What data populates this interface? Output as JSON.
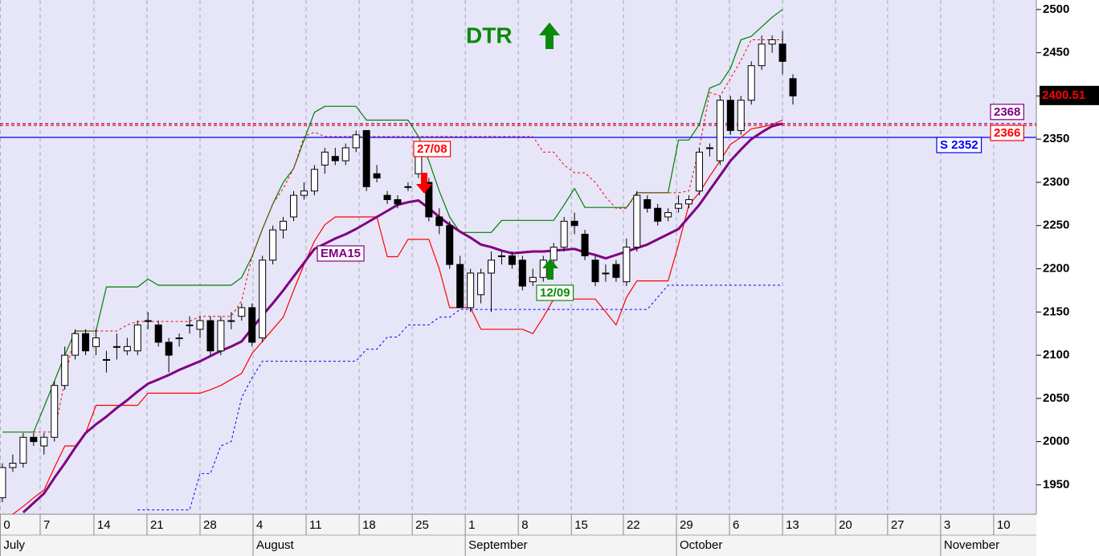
{
  "chart_data": {
    "type": "candlestick",
    "title": "DTR",
    "title_color": "#0a8a0a",
    "background": "#e6e6f8",
    "xlim": [
      -0.23,
      99.4
    ],
    "ylim": [
      1916,
      2511
    ],
    "yticks": [
      1950,
      2000,
      2050,
      2100,
      2150,
      2200,
      2250,
      2300,
      2350,
      2400,
      2450,
      2500
    ],
    "xticks": [
      {
        "value": -0.2,
        "label": "0"
      },
      {
        "value": 3.63,
        "label": "7"
      },
      {
        "value": 8.8,
        "label": "14"
      },
      {
        "value": 13.9,
        "label": "21"
      },
      {
        "value": 19.0,
        "label": "28"
      },
      {
        "value": 24.1,
        "label": "4"
      },
      {
        "value": 29.2,
        "label": "11"
      },
      {
        "value": 34.3,
        "label": "18"
      },
      {
        "value": 39.4,
        "label": "25"
      },
      {
        "value": 44.5,
        "label": "1"
      },
      {
        "value": 49.6,
        "label": "8"
      },
      {
        "value": 54.7,
        "label": "15"
      },
      {
        "value": 59.7,
        "label": "22"
      },
      {
        "value": 64.8,
        "label": "29"
      },
      {
        "value": 69.9,
        "label": "6"
      },
      {
        "value": 75.0,
        "label": "13"
      },
      {
        "value": 80.1,
        "label": "20"
      },
      {
        "value": 85.1,
        "label": "27"
      },
      {
        "value": 90.2,
        "label": "3"
      },
      {
        "value": 95.3,
        "label": "10"
      }
    ],
    "month_ticks": [
      {
        "value": -0.2,
        "label": "July"
      },
      {
        "value": 24.1,
        "label": "August"
      },
      {
        "value": 44.5,
        "label": "September"
      },
      {
        "value": 64.8,
        "label": "October"
      },
      {
        "value": 90.2,
        "label": "November"
      }
    ],
    "grid": true,
    "open": [
      1935,
      1970,
      1975,
      2005,
      1995,
      2005,
      2065,
      2100,
      2125,
      2110,
      2095,
      2110,
      2105,
      2105,
      2140,
      2135,
      2115,
      2120,
      2135,
      2130,
      2140,
      2105,
      2140,
      2145,
      2155,
      2120,
      2210,
      2245,
      2260,
      2285,
      2290,
      2320,
      2330,
      2325,
      2340,
      2360,
      2310,
      2285,
      2280,
      2295,
      2310,
      2300,
      2260,
      2250,
      2205,
      2155,
      2170,
      2195,
      2215,
      2215,
      2210,
      2185,
      2190,
      2210,
      2225,
      2255,
      2240,
      2210,
      2195,
      2205,
      2185,
      2225,
      2280,
      2270,
      2260,
      2270,
      2275,
      2290,
      2340,
      2325,
      2395,
      2360,
      2395,
      2435,
      2460,
      2460,
      2420
    ],
    "high": [
      1975,
      1985,
      2010,
      2010,
      2010,
      2070,
      2110,
      2130,
      2130,
      2130,
      2105,
      2125,
      2120,
      2140,
      2150,
      2140,
      2120,
      2125,
      2145,
      2145,
      2145,
      2145,
      2150,
      2160,
      2160,
      2215,
      2250,
      2260,
      2290,
      2300,
      2320,
      2340,
      2340,
      2345,
      2360,
      2360,
      2320,
      2290,
      2285,
      2300,
      2345,
      2305,
      2270,
      2255,
      2215,
      2200,
      2200,
      2220,
      2220,
      2220,
      2215,
      2200,
      2215,
      2230,
      2260,
      2265,
      2245,
      2215,
      2205,
      2210,
      2235,
      2290,
      2285,
      2275,
      2270,
      2285,
      2285,
      2340,
      2345,
      2400,
      2400,
      2400,
      2440,
      2470,
      2470,
      2475,
      2425
    ],
    "low": [
      1930,
      1965,
      1970,
      1995,
      1985,
      2000,
      2060,
      2095,
      2100,
      2100,
      2080,
      2095,
      2100,
      2100,
      2130,
      2110,
      2080,
      2110,
      2125,
      2120,
      2100,
      2100,
      2130,
      2140,
      2110,
      2115,
      2205,
      2235,
      2255,
      2280,
      2285,
      2310,
      2320,
      2320,
      2335,
      2290,
      2300,
      2275,
      2270,
      2290,
      2305,
      2255,
      2240,
      2200,
      2155,
      2150,
      2160,
      2150,
      2205,
      2200,
      2175,
      2180,
      2185,
      2205,
      2220,
      2240,
      2210,
      2180,
      2185,
      2185,
      2180,
      2220,
      2265,
      2250,
      2255,
      2265,
      2270,
      2285,
      2330,
      2320,
      2355,
      2355,
      2390,
      2430,
      2450,
      2425,
      2390
    ],
    "close": [
      1970,
      1975,
      2005,
      2000,
      2005,
      2065,
      2100,
      2125,
      2105,
      2120,
      2095,
      2110,
      2110,
      2135,
      2140,
      2115,
      2100,
      2120,
      2135,
      2140,
      2105,
      2140,
      2140,
      2155,
      2115,
      2210,
      2245,
      2255,
      2285,
      2290,
      2315,
      2335,
      2325,
      2340,
      2355,
      2295,
      2305,
      2280,
      2275,
      2295,
      2330,
      2260,
      2250,
      2205,
      2155,
      2195,
      2195,
      2210,
      2215,
      2205,
      2180,
      2190,
      2210,
      2225,
      2255,
      2250,
      2215,
      2185,
      2195,
      2190,
      2225,
      2285,
      2270,
      2255,
      2265,
      2275,
      2280,
      2335,
      2340,
      2395,
      2360,
      2395,
      2435,
      2460,
      2465,
      2440,
      2400
    ],
    "series": [
      {
        "color": "#008000",
        "width": 1.2,
        "dash": false,
        "values": [
          2011,
          2011,
          2011,
          2011,
          2040,
          2070,
          2100,
          2128,
          2128,
          2128,
          2179,
          2179,
          2179,
          2179,
          2188,
          2181,
          2181,
          2181,
          2181,
          2181,
          2181,
          2181,
          2181,
          2190,
          2214,
          2246,
          2275,
          2300,
          2316,
          2349,
          2381,
          2388,
          2388,
          2388,
          2388,
          2372,
          2372,
          2372,
          2372,
          2372,
          2353,
          2325,
          2290,
          2260,
          2242,
          2242,
          2242,
          2242,
          2256,
          2256,
          2256,
          2256,
          2256,
          2256,
          2274,
          2293,
          2271,
          2271,
          2271,
          2271,
          2271,
          2288,
          2288,
          2288,
          2288,
          2349,
          2349,
          2367,
          2409,
          2414,
          2432,
          2465,
          2469,
          2480,
          2491,
          2500,
          null
        ]
      },
      {
        "color": "#ff0000",
        "width": 1.2,
        "dash": false,
        "values": [
          null,
          1916,
          1925,
          1935,
          1944,
          1970,
          1995,
          1995,
          2010,
          2042,
          2042,
          2042,
          2042,
          2042,
          2056,
          2056,
          2056,
          2056,
          2056,
          2056,
          2060,
          2065,
          2072,
          2079,
          2102,
          2116,
          2130,
          2144,
          2175,
          2205,
          2232,
          2251,
          2260,
          2260,
          2260,
          2260,
          2260,
          2214,
          2214,
          2234,
          2234,
          2234,
          2200,
          2155,
          2155,
          2155,
          2130,
          2130,
          2130,
          2130,
          2130,
          2125,
          2144,
          2165,
          2165,
          2165,
          2165,
          2165,
          2150,
          2135,
          2167,
          2186,
          2186,
          2186,
          2186,
          2228,
          2274,
          2288,
          2307,
          2325,
          2344,
          2352,
          2362,
          2364,
          2367,
          2372,
          null
        ]
      },
      {
        "color": "#ff0000",
        "width": 1,
        "dash": true,
        "values": [
          null,
          null,
          null,
          2011,
          2011,
          2011,
          2070,
          2128,
          2128,
          2128,
          2128,
          2128,
          2135,
          2139,
          2139,
          2139,
          2139,
          2139,
          2139,
          2145,
          2145,
          2145,
          2145,
          2163,
          2214,
          2246,
          2275,
          2293,
          2316,
          2353,
          2358,
          2353,
          2353,
          2353,
          2353,
          2353,
          2353,
          2353,
          2353,
          2353,
          2353,
          2353,
          2353,
          2353,
          2353,
          2353,
          2353,
          2353,
          2353,
          2353,
          2353,
          2353,
          2335,
          2335,
          2320,
          2311,
          2311,
          2300,
          2283,
          2270,
          2270,
          2288,
          2288,
          2288,
          2288,
          2288,
          2290,
          2340,
          2404,
          2400,
          2420,
          2441,
          2465,
          2465,
          2465,
          2465,
          null
        ]
      },
      {
        "color": "#0000ff",
        "width": 1,
        "dash": true,
        "values": [
          null,
          null,
          null,
          null,
          null,
          null,
          null,
          null,
          null,
          null,
          null,
          null,
          null,
          1921,
          1921,
          1921,
          1921,
          1921,
          1921,
          1963,
          1963,
          1995,
          2000,
          2051,
          2074,
          2093,
          2093,
          2093,
          2093,
          2093,
          2093,
          2093,
          2093,
          2093,
          2093,
          2107,
          2107,
          2121,
          2121,
          2135,
          2135,
          2135,
          2144,
          2144,
          2153,
          2153,
          2153,
          2153,
          2153,
          2153,
          2153,
          2153,
          2153,
          2153,
          2153,
          2153,
          2153,
          2153,
          2153,
          2153,
          2153,
          2153,
          2153,
          2167,
          2181,
          2181,
          2181,
          2181,
          2181,
          2181,
          2181,
          2181,
          2181,
          2181,
          2181,
          2181,
          null
        ]
      },
      {
        "name": "EMA15",
        "color": "#800080",
        "width": 3,
        "dash": false,
        "values": [
          null,
          null,
          1918,
          1929,
          1940,
          1958,
          1975,
          1993,
          2010,
          2020,
          2029,
          2039,
          2048,
          2058,
          2067,
          2072,
          2077,
          2083,
          2088,
          2093,
          2099,
          2105,
          2110,
          2116,
          2131,
          2146,
          2160,
          2175,
          2191,
          2207,
          2223,
          2229,
          2235,
          2240,
          2246,
          2253,
          2260,
          2267,
          2274,
          2277,
          2279,
          2270,
          2260,
          2251,
          2243,
          2236,
          2228,
          2225,
          2221,
          2218,
          2219,
          2220,
          2220,
          2221,
          2222,
          2223,
          2219,
          2216,
          2212,
          2216,
          2220,
          2224,
          2228,
          2234,
          2240,
          2246,
          2260,
          2274,
          2291,
          2308,
          2325,
          2338,
          2350,
          2358,
          2365,
          2368,
          null
        ]
      }
    ],
    "hlines": [
      {
        "value": 2352,
        "label": "S 2352",
        "color": "#0000ff",
        "dash": false
      },
      {
        "value": 2368,
        "color": "#800080",
        "dash": true
      },
      {
        "value": 2366,
        "color": "#ff0000",
        "dash": true
      }
    ],
    "last_price": 2400.51,
    "annotations": [
      {
        "text": "27/08",
        "color": "#ff0000",
        "arrow": "down"
      },
      {
        "text": "12/09",
        "color": "#0a8a0a",
        "arrow": "up"
      }
    ]
  }
}
